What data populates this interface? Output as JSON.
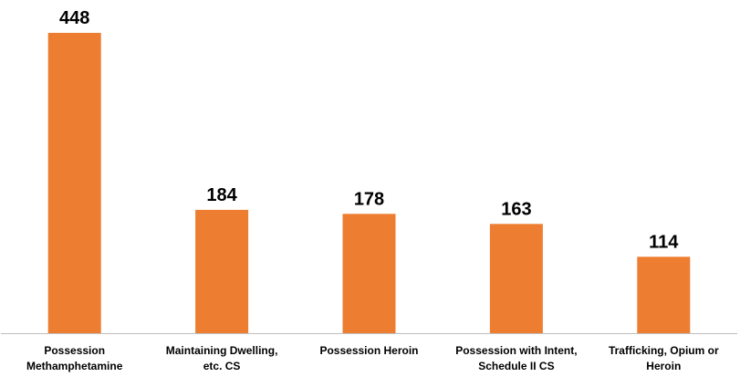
{
  "chart_data": {
    "type": "bar",
    "categories": [
      [
        "Possession",
        "Methamphetamine"
      ],
      [
        "Maintaining Dwelling,",
        "etc. CS"
      ],
      [
        "Possession Heroin"
      ],
      [
        "Possession with Intent,",
        "Schedule II CS"
      ],
      [
        "Trafficking, Opium or",
        "Heroin"
      ]
    ],
    "values": [
      448,
      184,
      178,
      163,
      114
    ],
    "value_labels": [
      "448",
      "184",
      "178",
      "163",
      "114"
    ],
    "bar_color": "#ED7D31",
    "axis_color": "#BFBFBF",
    "ylim": [
      0,
      448
    ],
    "grid": false,
    "legend": "none"
  }
}
